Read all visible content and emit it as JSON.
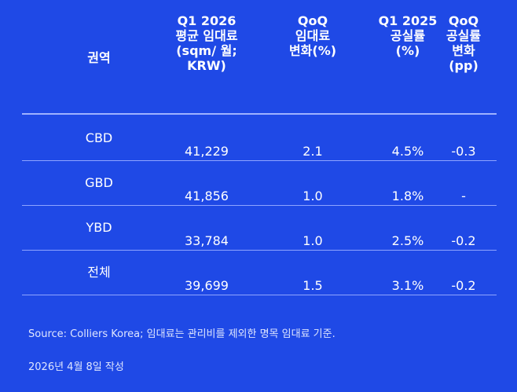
{
  "table": {
    "headers": [
      "권역",
      "Q1 2026\n평균 임대료\n(sqm/ 월;\nKRW)",
      "QoQ\n임대료\n변화(%)",
      "Q1 2025\n공실률\n(%)",
      "QoQ\n공실률\n변화\n(pp)"
    ],
    "rows": [
      [
        "CBD",
        "41,229",
        "2.1",
        "4.5%",
        "-0.3"
      ],
      [
        "GBD",
        "41,856",
        "1.0",
        "1.8%",
        "-"
      ],
      [
        "YBD",
        "33,784",
        "1.0",
        "2.5%",
        "-0.2"
      ],
      [
        "전체",
        "39,699",
        "1.5",
        "3.1%",
        "-0.2"
      ]
    ]
  },
  "footnote": {
    "source": "Source: Colliers Korea; 임대료는 관리비를 제외한 명목 임대료 기준.",
    "date": "2026년 4월 8일 작성"
  },
  "colors": {
    "background": "#1f49e6",
    "text": "#ffffff",
    "divider": "#9fb2ff"
  }
}
